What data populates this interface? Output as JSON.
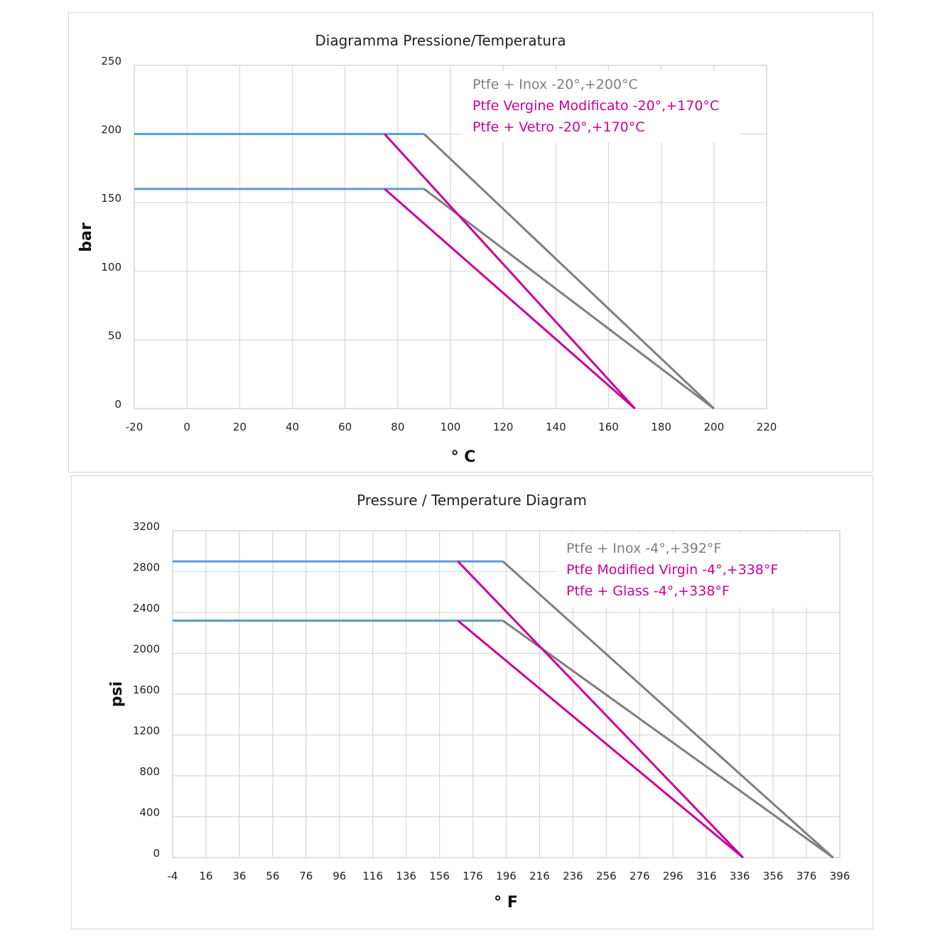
{
  "colors": {
    "blue": "#5b9bd5",
    "gray": "#7f7f7f",
    "magenta": "#cc0099",
    "grid": "#d9d9d9"
  },
  "chart_data": [
    {
      "type": "line",
      "title": "Diagramma Pressione/Temperatura",
      "xlabel": "° C",
      "ylabel": "bar",
      "xlim": [
        -20,
        220
      ],
      "ylim": [
        0,
        250
      ],
      "xticks": [
        "-20",
        "0",
        "20",
        "40",
        "60",
        "80",
        "100",
        "120",
        "140",
        "160",
        "180",
        "200",
        "220"
      ],
      "yticks": [
        "0",
        "50",
        "100",
        "150",
        "200",
        "250"
      ],
      "grid": true,
      "legend_position": "top-right",
      "legend": [
        {
          "text": "Ptfe + Inox -20°,+200°C",
          "color": "#7f7f7f"
        },
        {
          "text": "Ptfe Vergine Modificato -20°,+170°C",
          "color": "#cc0099"
        },
        {
          "text": "Ptfe + Vetro -20°,+170°C",
          "color": "#cc0099"
        }
      ],
      "series": [
        {
          "color": "#5b9bd5",
          "points": [
            [
              -20,
              200
            ],
            [
              90,
              200
            ]
          ]
        },
        {
          "color": "#5b9bd5",
          "points": [
            [
              -20,
              160
            ],
            [
              90,
              160
            ]
          ]
        },
        {
          "color": "#7f7f7f",
          "points": [
            [
              90,
              200
            ],
            [
              200,
              0
            ]
          ]
        },
        {
          "color": "#7f7f7f",
          "points": [
            [
              90,
              160
            ],
            [
              200,
              0
            ]
          ]
        },
        {
          "color": "#cc0099",
          "points": [
            [
              75,
              200
            ],
            [
              170,
              0
            ]
          ]
        },
        {
          "color": "#cc0099",
          "points": [
            [
              75,
              160
            ],
            [
              170,
              0
            ]
          ]
        }
      ]
    },
    {
      "type": "line",
      "title": "Pressure / Temperature Diagram",
      "xlabel": "° F",
      "ylabel": "psi",
      "xlim": [
        -4,
        396
      ],
      "ylim": [
        0,
        3200
      ],
      "xticks": [
        "-4",
        "16",
        "36",
        "56",
        "76",
        "96",
        "116",
        "136",
        "156",
        "176",
        "196",
        "216",
        "236",
        "256",
        "276",
        "296",
        "316",
        "336",
        "356",
        "376",
        "396"
      ],
      "yticks": [
        "0",
        "400",
        "800",
        "1200",
        "1600",
        "2000",
        "2400",
        "2800",
        "3200"
      ],
      "grid": true,
      "legend_position": "top-right",
      "legend": [
        {
          "text": "Ptfe + Inox -4°,+392°F",
          "color": "#7f7f7f"
        },
        {
          "text": "Ptfe Modified Virgin -4°,+338°F",
          "color": "#cc0099"
        },
        {
          "text": "Ptfe + Glass -4°,+338°F",
          "color": "#cc0099"
        }
      ],
      "series": [
        {
          "color": "#5b9bd5",
          "points": [
            [
              -4,
              2900
            ],
            [
              194,
              2900
            ]
          ]
        },
        {
          "color": "#5b9bd5",
          "points": [
            [
              -4,
              2320
            ],
            [
              194,
              2320
            ]
          ]
        },
        {
          "color": "#7f7f7f",
          "points": [
            [
              194,
              2900
            ],
            [
              392,
              0
            ]
          ]
        },
        {
          "color": "#7f7f7f",
          "points": [
            [
              194,
              2320
            ],
            [
              392,
              0
            ]
          ]
        },
        {
          "color": "#cc0099",
          "points": [
            [
              167,
              2900
            ],
            [
              338,
              0
            ]
          ]
        },
        {
          "color": "#cc0099",
          "points": [
            [
              167,
              2320
            ],
            [
              338,
              0
            ]
          ]
        }
      ]
    }
  ]
}
